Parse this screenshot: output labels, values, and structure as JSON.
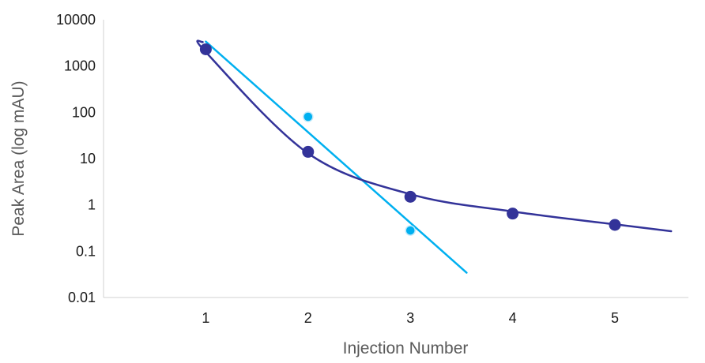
{
  "chart_data": {
    "type": "scatter",
    "title": "",
    "xlabel": "Injection Number",
    "ylabel": "Peak Area (log mAU)",
    "xlim": [
      0,
      6
    ],
    "ylim": [
      0.01,
      10000
    ],
    "yscale": "log",
    "grid": false,
    "x_ticks": [
      "1",
      "2",
      "3",
      "4",
      "5"
    ],
    "y_ticks": [
      "0.01",
      "0.1",
      "1",
      "10",
      "100",
      "1000",
      "10000"
    ],
    "series": [
      {
        "color": "#00B0F0",
        "marker": "circle-small",
        "x": [
          1,
          2,
          3
        ],
        "y": [
          2300,
          80,
          0.28
        ],
        "trendline": {
          "kind": "exponential-fit",
          "x_range": [
            1,
            3.55
          ]
        }
      },
      {
        "color": "#333399",
        "marker": "circle",
        "x": [
          1,
          2,
          3,
          4,
          5
        ],
        "y": [
          2300,
          14,
          1.5,
          0.65,
          0.37
        ],
        "trendline": {
          "kind": "smooth-fit",
          "x_range": [
            0.97,
            5.55
          ],
          "y_start": 3300,
          "y_end": 0.27
        }
      }
    ]
  }
}
